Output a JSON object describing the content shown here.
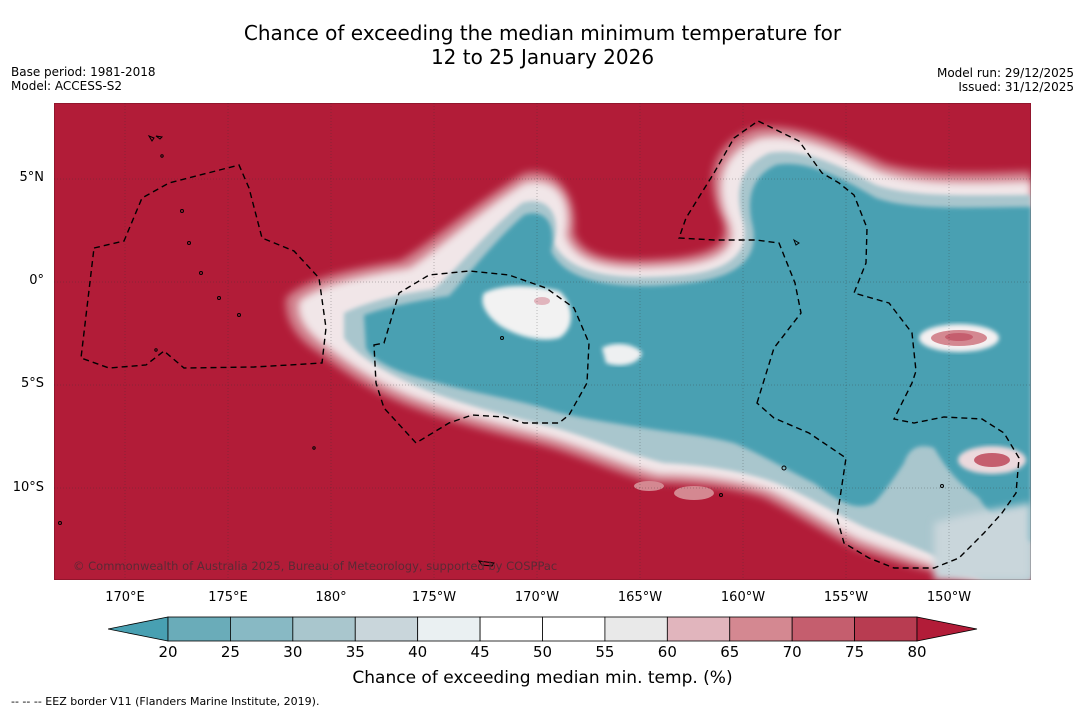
{
  "title": {
    "line1": "Chance of exceeding the median minimum temperature for",
    "line2": "12 to 25 January 2026"
  },
  "meta_left": {
    "base_period": "Base period: 1981-2018",
    "model": "Model: ACCESS-S2"
  },
  "meta_right": {
    "model_run": "Model run: 29/12/2025",
    "issued": "Issued: 31/12/2025"
  },
  "map": {
    "lat_labels": [
      "5°N",
      "0°",
      "5°S",
      "10°S"
    ],
    "lon_labels": [
      "170°E",
      "175°E",
      "180°",
      "175°W",
      "170°W",
      "165°W",
      "160°W",
      "155°W",
      "150°W"
    ],
    "copyright": "© Commonwealth of Australia 2025, Bureau of Meteorology, supported by COSPPac",
    "colors": {
      "above_80": "#b21c38",
      "below_20": "#48a0b2"
    }
  },
  "colorbar": {
    "ticks": [
      "20",
      "25",
      "30",
      "35",
      "40",
      "45",
      "50",
      "55",
      "60",
      "65",
      "70",
      "75",
      "80"
    ],
    "colors": [
      "#6aacb9",
      "#88b9c4",
      "#a9c6cd",
      "#c9d6db",
      "#eaf0f2",
      "#ffffff",
      "#ffffff",
      "#e9e9e9",
      "#e1b5bd",
      "#d48891",
      "#c55e6e",
      "#b83c51"
    ],
    "low_color": "#48a0b2",
    "high_color": "#b21c38",
    "label": "Chance of exceeding median min. temp. (%)"
  },
  "footer": "--  --  -- EEZ border V11 (Flanders Marine Institute, 2019)."
}
